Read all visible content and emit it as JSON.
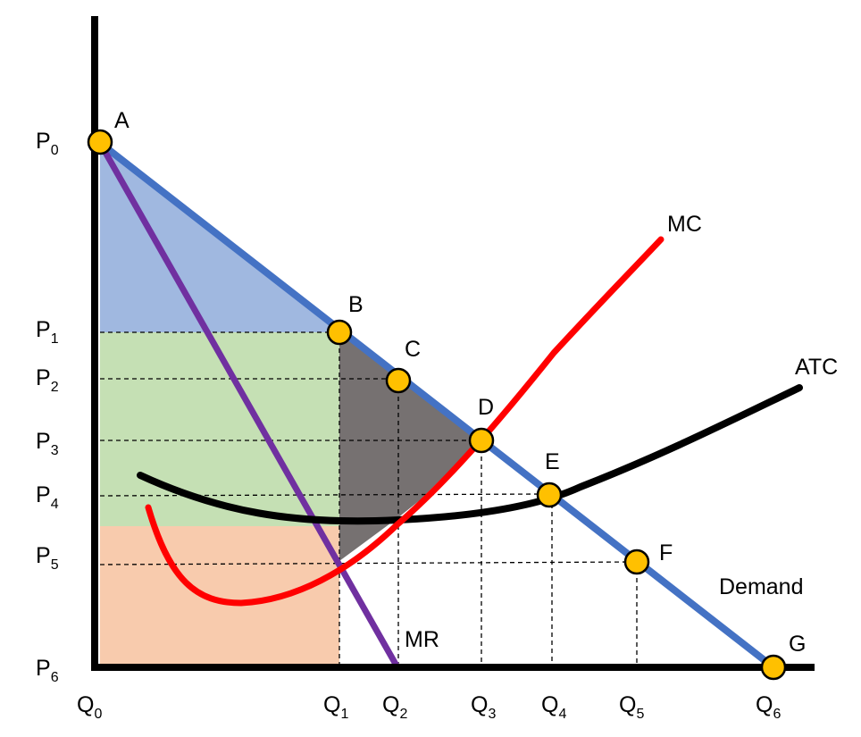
{
  "price_labels": [
    {
      "main": "P",
      "sub": "0"
    },
    {
      "main": "P",
      "sub": "1"
    },
    {
      "main": "P",
      "sub": "2"
    },
    {
      "main": "P",
      "sub": "3"
    },
    {
      "main": "P",
      "sub": "4"
    },
    {
      "main": "P",
      "sub": "5"
    },
    {
      "main": "P",
      "sub": "6"
    }
  ],
  "quantity_labels": [
    {
      "main": "Q",
      "sub": "0"
    },
    {
      "main": "Q",
      "sub": "1"
    },
    {
      "main": "Q",
      "sub": "2"
    },
    {
      "main": "Q",
      "sub": "3"
    },
    {
      "main": "Q",
      "sub": "4"
    },
    {
      "main": "Q",
      "sub": "5"
    },
    {
      "main": "Q",
      "sub": "6"
    }
  ],
  "points": [
    "A",
    "B",
    "C",
    "D",
    "E",
    "F",
    "G"
  ],
  "curves": {
    "mc": {
      "label": "MC",
      "color": "#ff0000"
    },
    "atc": {
      "label": "ATC",
      "color": "#000000"
    },
    "mr": {
      "label": "MR",
      "color": "#7030a0"
    },
    "demand": {
      "label": "Demand",
      "color": "#4472c4"
    }
  },
  "colors": {
    "consumer_surplus": "#a0b8e0",
    "profit_area": "#c5e0b4",
    "cost_area": "#f8cbad",
    "deadweight_loss": "#767171",
    "point_fill": "#ffc000"
  }
}
